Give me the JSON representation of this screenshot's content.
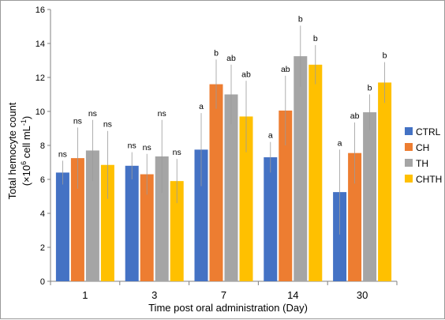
{
  "chart_data": {
    "type": "bar",
    "categories": [
      "1",
      "3",
      "7",
      "14",
      "30"
    ],
    "xlabel": "Time post oral administration (Day)",
    "ylabel": {
      "line1": "Total hemocyte count",
      "line2_prefix": "(×10",
      "line2_exp": "6",
      "line2_mid": " cell mL",
      "line2_exp2": "-1",
      "line2_suffix": ")"
    },
    "ylim": [
      0,
      16
    ],
    "yticks": [
      "0",
      "2",
      "4",
      "6",
      "8",
      "10",
      "12",
      "14",
      "16"
    ],
    "legend_position": "right",
    "series": [
      {
        "name": "CTRL",
        "color": "#4472c4",
        "values": [
          6.4,
          6.8,
          7.75,
          7.3,
          5.25
        ],
        "errors": [
          0.7,
          0.8,
          2.15,
          0.9,
          2.5
        ],
        "labels": [
          "ns",
          "ns",
          "a",
          "a",
          "a"
        ]
      },
      {
        "name": "CH",
        "color": "#ed7d31",
        "values": [
          7.25,
          6.3,
          11.6,
          10.05,
          7.55
        ],
        "errors": [
          1.8,
          1.2,
          1.45,
          2.05,
          1.8
        ],
        "labels": [
          "ns",
          "ns",
          "b",
          "ab",
          "ab"
        ]
      },
      {
        "name": "TH",
        "color": "#a5a5a5",
        "values": [
          7.7,
          7.35,
          11.0,
          13.25,
          9.95
        ],
        "errors": [
          1.8,
          2.15,
          1.75,
          1.8,
          1.05
        ],
        "labels": [
          "ns",
          "ns",
          "ab",
          "b",
          "b"
        ]
      },
      {
        "name": "CHTH",
        "color": "#ffc000",
        "values": [
          6.85,
          5.9,
          9.7,
          12.75,
          11.7
        ],
        "errors": [
          2.0,
          1.3,
          2.1,
          1.15,
          1.2
        ],
        "labels": [
          "ns",
          "ns",
          "ab",
          "b",
          "b"
        ]
      }
    ]
  }
}
